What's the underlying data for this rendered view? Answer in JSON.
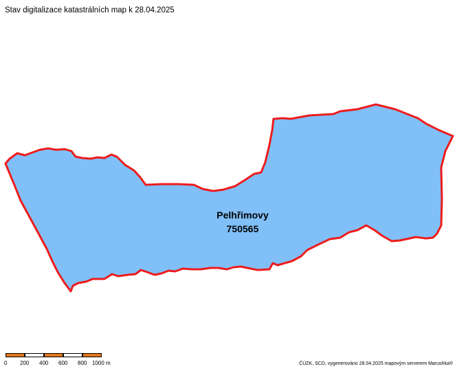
{
  "map": {
    "title": "Stav digitalizace katastrálních map k 28.04.2025",
    "parcel": {
      "name": "Pelhřimovy",
      "code": "750565",
      "fill_color": "#80bff8",
      "border_color": "#ee1c1c"
    }
  },
  "scale_bar": {
    "ticks": [
      "0",
      "200",
      "400",
      "600",
      "800",
      "1000 m"
    ],
    "colors": [
      "#e4791f",
      "#ffffff"
    ]
  },
  "credit": "ČÚZK, SCD, vygenerováno 28.04.2025 mapovým serverem Marushka®"
}
